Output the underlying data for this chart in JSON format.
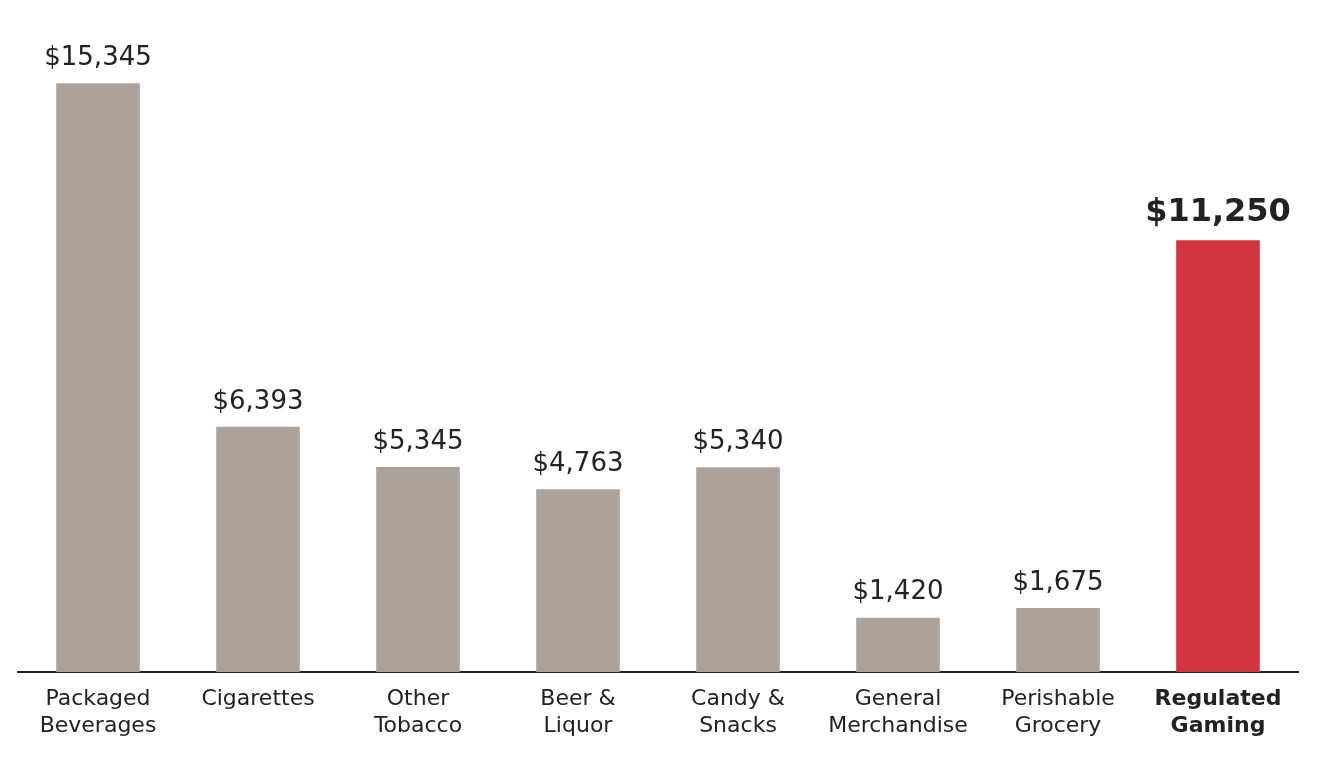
{
  "chart_data": {
    "type": "bar",
    "categories": [
      "Packaged Beverages",
      "Cigarettes",
      "Other Tobacco",
      "Beer & Liquor",
      "Candy & Snacks",
      "General Merchandise",
      "Perishable Grocery",
      "Regulated Gaming"
    ],
    "values": [
      15345,
      6393,
      5345,
      4763,
      5340,
      1420,
      1675,
      11250
    ],
    "colors": [
      "#aba39b",
      "#aba39b",
      "#aba39b",
      "#aba39b",
      "#aba39b",
      "#aba39b",
      "#aba39b",
      "#d2353e"
    ],
    "value_labels": [
      "$15,345",
      "$6,393",
      "$5,345",
      "$4,763",
      "$5,340",
      "$1,420",
      "$1,675",
      "$11,250"
    ],
    "grid": false,
    "legend": false
  }
}
